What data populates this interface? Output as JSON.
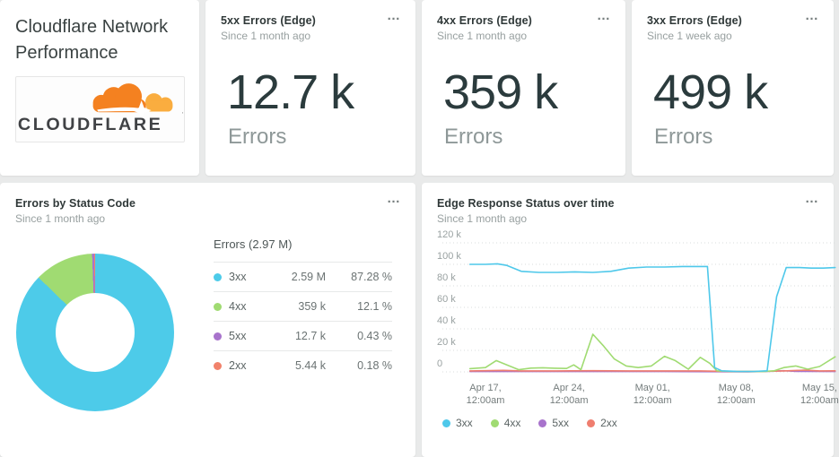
{
  "title_card": {
    "title": "Cloudflare Network Performance",
    "logo_text": "CLOUDFLARE"
  },
  "menu_icon": "…",
  "billboards": [
    {
      "title": "5xx Errors (Edge)",
      "subtitle": "Since 1 month ago",
      "value": "12.7 k",
      "unit": "Errors"
    },
    {
      "title": "4xx Errors (Edge)",
      "subtitle": "Since 1 month ago",
      "value": "359 k",
      "unit": "Errors"
    },
    {
      "title": "3xx Errors (Edge)",
      "subtitle": "Since 1 week ago",
      "value": "499 k",
      "unit": "Errors"
    }
  ],
  "donut_panel": {
    "title": "Errors by Status Code",
    "subtitle": "Since 1 month ago"
  },
  "timeseries_panel": {
    "title": "Edge Response Status over time",
    "subtitle": "Since 1 month ago"
  },
  "chart_data": [
    {
      "type": "pie",
      "donut": true,
      "title": "Errors by Status Code",
      "total_label": "Errors (2.97 M)",
      "slices": [
        {
          "label": "3xx",
          "value": 2590000,
          "value_label": "2.59 M",
          "percent": 87.28,
          "percent_label": "87.28 %",
          "color": "#4DCBE9"
        },
        {
          "label": "4xx",
          "value": 359000,
          "value_label": "359 k",
          "percent": 12.1,
          "percent_label": "12.1 %",
          "color": "#A0DB72"
        },
        {
          "label": "5xx",
          "value": 12700,
          "value_label": "12.7 k",
          "percent": 0.43,
          "percent_label": "0.43 %",
          "color": "#A873CC"
        },
        {
          "label": "2xx",
          "value": 5440,
          "value_label": "5.44 k",
          "percent": 0.18,
          "percent_label": "0.18 %",
          "color": "#F1826B"
        }
      ]
    },
    {
      "type": "line",
      "title": "Edge Response Status over time",
      "ylim_k": [
        0,
        120
      ],
      "y_tick_values_k": [
        0,
        20,
        40,
        60,
        80,
        100,
        120
      ],
      "y_ticks": [
        "0",
        "20 k",
        "40 k",
        "60 k",
        "80 k",
        "100 k",
        "120 k"
      ],
      "x_tick_days": [
        0,
        7,
        14,
        21,
        28
      ],
      "x_ticks": [
        {
          "line1": "Apr 17,",
          "line2": "12:00am"
        },
        {
          "line1": "Apr 24,",
          "line2": "12:00am"
        },
        {
          "line1": "May 01,",
          "line2": "12:00am"
        },
        {
          "line1": "May 08,",
          "line2": "12:00am"
        },
        {
          "line1": "May 15,",
          "line2": "12:00am"
        }
      ],
      "grid": "dotted",
      "legend_position": "bottom-left",
      "values_unit": "errors (thousands)",
      "series": [
        {
          "name": "5xx",
          "color": "#A873CC",
          "points": [
            [
              -1.3,
              0.3
            ],
            [
              5,
              0.3
            ],
            [
              10,
              0.35
            ],
            [
              15,
              0.3
            ],
            [
              19.5,
              0.2
            ],
            [
              22,
              0.1
            ],
            [
              24,
              0.6
            ],
            [
              25,
              1.1
            ],
            [
              26,
              0.4
            ],
            [
              29.3,
              0.3
            ]
          ]
        },
        {
          "name": "2xx",
          "color": "#EF7E6F",
          "points": [
            [
              -1.3,
              0.9
            ],
            [
              1.5,
              1.4
            ],
            [
              3,
              0.9
            ],
            [
              6,
              0.9
            ],
            [
              9,
              1.1
            ],
            [
              12,
              0.9
            ],
            [
              15,
              0.9
            ],
            [
              18,
              0.9
            ],
            [
              19.5,
              0.6
            ],
            [
              21,
              0.4
            ],
            [
              23,
              0.4
            ],
            [
              25,
              0.9
            ],
            [
              26.8,
              1.6
            ],
            [
              28,
              0.9
            ],
            [
              29.3,
              1
            ]
          ]
        },
        {
          "name": "4xx",
          "color": "#A0DB72",
          "points": [
            [
              -1.3,
              3
            ],
            [
              0,
              4
            ],
            [
              0.9,
              10.5
            ],
            [
              1.8,
              6.5
            ],
            [
              2.8,
              2
            ],
            [
              3.8,
              3.5
            ],
            [
              4.8,
              3.8
            ],
            [
              5.8,
              3.4
            ],
            [
              6.8,
              3.2
            ],
            [
              7.4,
              6.5
            ],
            [
              8,
              2
            ],
            [
              9,
              35
            ],
            [
              9.9,
              24
            ],
            [
              10.8,
              12
            ],
            [
              11.8,
              5.5
            ],
            [
              12.8,
              4
            ],
            [
              13.9,
              5.5
            ],
            [
              15,
              14.5
            ],
            [
              15.9,
              10.5
            ],
            [
              17,
              2.5
            ],
            [
              18,
              13.5
            ],
            [
              18.8,
              8
            ],
            [
              19.4,
              1
            ],
            [
              20.5,
              0.4
            ],
            [
              23.3,
              0.3
            ],
            [
              24.2,
              1
            ],
            [
              25,
              4
            ],
            [
              26,
              5.5
            ],
            [
              27,
              2.5
            ],
            [
              28,
              5
            ],
            [
              29.3,
              14
            ]
          ]
        },
        {
          "name": "3xx",
          "color": "#4EC8EA",
          "points": [
            [
              -1.3,
              100
            ],
            [
              0,
              100
            ],
            [
              1,
              100.5
            ],
            [
              1.8,
              99
            ],
            [
              3,
              93.5
            ],
            [
              4.5,
              92.5
            ],
            [
              6,
              92.5
            ],
            [
              7.5,
              93
            ],
            [
              9,
              92.5
            ],
            [
              10.5,
              93.5
            ],
            [
              12,
              96.5
            ],
            [
              13.5,
              97.5
            ],
            [
              15,
              97.5
            ],
            [
              16.5,
              98
            ],
            [
              18.6,
              98
            ],
            [
              19.2,
              4
            ],
            [
              19.8,
              1
            ],
            [
              21,
              0.5
            ],
            [
              22.5,
              0.4
            ],
            [
              23.6,
              1
            ],
            [
              24.4,
              70
            ],
            [
              25.2,
              97
            ],
            [
              26.3,
              97
            ],
            [
              27.3,
              96.5
            ],
            [
              28.3,
              96.5
            ],
            [
              29.3,
              97
            ]
          ]
        }
      ],
      "legend": [
        "3xx",
        "4xx",
        "5xx",
        "2xx"
      ]
    }
  ]
}
